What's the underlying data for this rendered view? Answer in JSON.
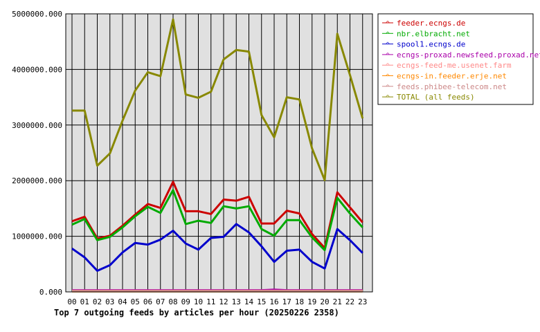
{
  "chart_data": {
    "type": "line",
    "title": "Top 7 outgoing feeds by articles per hour (20250226 2358)",
    "xlabel": "",
    "ylabel": "",
    "categories": [
      "00",
      "01",
      "02",
      "03",
      "04",
      "05",
      "06",
      "07",
      "08",
      "09",
      "10",
      "11",
      "12",
      "13",
      "14",
      "15",
      "16",
      "17",
      "18",
      "19",
      "20",
      "21",
      "22",
      "23"
    ],
    "y_ticks": [
      "0.000",
      "1000000.000",
      "2000000.000",
      "3000000.000",
      "4000000.000",
      "5000000.000"
    ],
    "ylim": [
      0,
      5000000
    ],
    "grid": true,
    "legend_position": "right",
    "plot_background": "#e0e0e0",
    "series": [
      {
        "name": "feeder.ecngs.de",
        "color": "#cc0000",
        "values": [
          1270000,
          1350000,
          960000,
          1010000,
          1190000,
          1390000,
          1580000,
          1510000,
          1980000,
          1450000,
          1450000,
          1400000,
          1660000,
          1640000,
          1710000,
          1230000,
          1230000,
          1460000,
          1410000,
          1040000,
          790000,
          1790000,
          1520000,
          1250000
        ]
      },
      {
        "name": "nbr.elbracht.net",
        "color": "#00aa00",
        "values": [
          1210000,
          1310000,
          930000,
          990000,
          1160000,
          1360000,
          1530000,
          1420000,
          1830000,
          1220000,
          1280000,
          1240000,
          1540000,
          1500000,
          1540000,
          1130000,
          1010000,
          1290000,
          1290000,
          980000,
          750000,
          1690000,
          1410000,
          1160000
        ]
      },
      {
        "name": "spool1.ecngs.de",
        "color": "#0000cc",
        "values": [
          780000,
          620000,
          380000,
          480000,
          710000,
          880000,
          850000,
          940000,
          1100000,
          870000,
          760000,
          970000,
          990000,
          1220000,
          1070000,
          820000,
          540000,
          740000,
          760000,
          540000,
          420000,
          1130000,
          930000,
          700000
        ]
      },
      {
        "name": "ecngs-proxad.newsfeed.proxad.net",
        "color": "#aa00aa",
        "values": [
          30000,
          30000,
          30000,
          30000,
          30000,
          30000,
          30000,
          30000,
          30000,
          30000,
          30000,
          30000,
          30000,
          30000,
          30000,
          30000,
          40000,
          30000,
          30000,
          30000,
          30000,
          30000,
          30000,
          30000
        ]
      },
      {
        "name": "ecngs-feed-me.usenet.farm",
        "color": "#ff8888",
        "values": [
          20000,
          20000,
          20000,
          20000,
          20000,
          20000,
          20000,
          20000,
          20000,
          20000,
          20000,
          20000,
          20000,
          20000,
          20000,
          20000,
          20000,
          20000,
          20000,
          20000,
          20000,
          20000,
          20000,
          20000
        ]
      },
      {
        "name": "ecngs-in.feeder.erje.net",
        "color": "#ff8800",
        "values": [
          10000,
          10000,
          10000,
          10000,
          10000,
          10000,
          10000,
          10000,
          10000,
          10000,
          10000,
          10000,
          10000,
          10000,
          10000,
          10000,
          10000,
          10000,
          10000,
          10000,
          10000,
          10000,
          10000,
          10000
        ]
      },
      {
        "name": "feeds.phibee-telecom.net",
        "color": "#cc8888",
        "values": [
          15000,
          15000,
          15000,
          15000,
          15000,
          15000,
          15000,
          15000,
          15000,
          15000,
          15000,
          15000,
          15000,
          15000,
          15000,
          15000,
          15000,
          15000,
          15000,
          15000,
          15000,
          15000,
          15000,
          15000
        ]
      },
      {
        "name": "TOTAL (all feeds)",
        "color": "#888800",
        "values": [
          3260000,
          3260000,
          2270000,
          2490000,
          3080000,
          3620000,
          3950000,
          3880000,
          4900000,
          3550000,
          3490000,
          3600000,
          4180000,
          4350000,
          4320000,
          3180000,
          2780000,
          3500000,
          3460000,
          2580000,
          2010000,
          4640000,
          3900000,
          3120000
        ]
      }
    ]
  }
}
